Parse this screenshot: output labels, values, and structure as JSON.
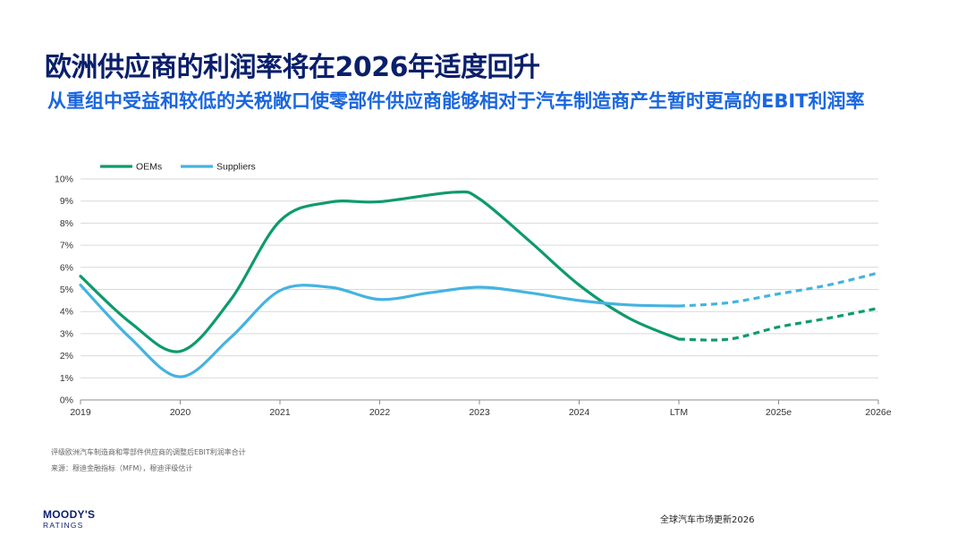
{
  "header": {
    "title": "欧洲供应商的利润率将在2026年适度回升",
    "subtitle": "从重组中受益和较低的关税敞口使零部件供应商能够相对于汽车制造商产生暂时更高的EBIT利润率"
  },
  "chart_data": {
    "type": "line",
    "title": "",
    "xlabel": "",
    "ylabel": "",
    "categories": [
      "2019",
      "2020",
      "2021",
      "2022",
      "2023",
      "2024",
      "LTM",
      "2025e",
      "2026e"
    ],
    "y_tick_labels": [
      "0%",
      "1%",
      "2%",
      "3%",
      "4%",
      "5%",
      "6%",
      "7%",
      "8%",
      "9%",
      "10%"
    ],
    "ylim": [
      0,
      10
    ],
    "grid": true,
    "legend_position": "top-left",
    "forecast_start_category": "LTM",
    "series": [
      {
        "name": "OEMs",
        "color": "#0e9a6e",
        "x": [
          0,
          0.5,
          1.0,
          1.5,
          2.0,
          2.5,
          3.0,
          3.75,
          4.0,
          4.5,
          5.0,
          5.5,
          6.0,
          6.5,
          7.0,
          7.5,
          8.0
        ],
        "values": [
          5.6,
          3.5,
          2.2,
          4.5,
          8.1,
          8.95,
          8.97,
          9.4,
          9.1,
          7.2,
          5.2,
          3.7,
          2.75,
          2.75,
          3.3,
          3.7,
          4.15
        ],
        "forecast_from_index": 12
      },
      {
        "name": "Suppliers",
        "color": "#45b3e0",
        "x": [
          0,
          0.5,
          1.0,
          1.5,
          2.0,
          2.5,
          3.0,
          3.5,
          4.0,
          4.5,
          5.0,
          5.5,
          6.0,
          6.5,
          7.0,
          7.5,
          8.0
        ],
        "values": [
          5.2,
          2.8,
          1.05,
          2.8,
          4.95,
          5.1,
          4.55,
          4.85,
          5.1,
          4.85,
          4.5,
          4.3,
          4.25,
          4.4,
          4.8,
          5.2,
          5.75
        ],
        "forecast_from_index": 12
      }
    ]
  },
  "notes": {
    "scope": "评级欧洲汽车制造商和零部件供应商的调整后EBIT利润率合计",
    "source": "来源：穆迪金融指标（MFM），穆迪评级估计"
  },
  "footer": {
    "logo_main": "MOODY'S",
    "logo_sub": "RATINGS",
    "report_title": "全球汽车市场更新2026"
  }
}
